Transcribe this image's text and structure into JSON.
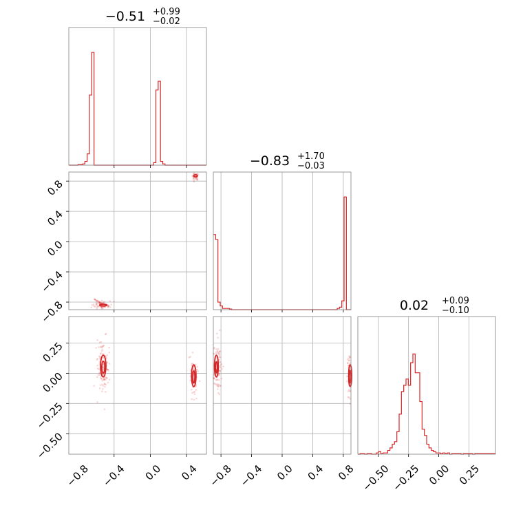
{
  "colors": {
    "accent": "#d62728",
    "grid": "#b0b0b0",
    "frame": "#808080"
  },
  "chart_data": {
    "type": "corner",
    "panels": [
      {
        "id": "hist-p1",
        "row": 0,
        "col": 0,
        "kind": "histogram",
        "title": {
          "median": "−0.51",
          "plus": "+0.99",
          "minus": "−0.02"
        },
        "xlim": [
          -0.9,
          0.62
        ],
        "xgrid": [
          -0.4,
          0.0,
          0.4
        ],
        "bins": {
          "start": -0.9,
          "width": 0.0253,
          "counts": [
            0,
            0,
            0,
            0,
            0.005,
            0.005,
            0.01,
            0.03,
            0.09,
            0.56,
            0.9,
            0,
            0,
            0,
            0,
            0,
            0,
            0,
            0,
            0,
            0,
            0,
            0,
            0,
            0,
            0,
            0,
            0,
            0,
            0,
            0,
            0,
            0,
            0,
            0,
            0,
            0,
            0.02,
            0.6,
            0.67,
            0.03,
            0.01,
            0,
            0,
            0,
            0,
            0,
            0,
            0,
            0,
            0,
            0,
            0,
            0,
            0,
            0,
            0,
            0,
            0,
            0
          ]
        }
      },
      {
        "id": "scatter-p1-p2",
        "row": 1,
        "col": 0,
        "kind": "scatter",
        "xlim": [
          -0.9,
          0.62
        ],
        "ylim": [
          -0.9,
          0.92
        ],
        "xgrid": [
          -0.4,
          0.0,
          0.4
        ],
        "ygrid": [
          -0.8,
          -0.4,
          0.0,
          0.4,
          0.8
        ],
        "yticks": [
          "−0.8",
          "−0.4",
          "0.0",
          "0.4",
          "0.8"
        ],
        "yticks_values": [
          -0.8,
          -0.4,
          0.0,
          0.4,
          0.8
        ],
        "clusters": [
          {
            "cx": -0.52,
            "cy": -0.84,
            "sx": 0.05,
            "sy": 0.025,
            "n": 90,
            "tail": [
              -0.85,
              -0.6
            ]
          },
          {
            "cx": 0.5,
            "cy": 0.86,
            "sx": 0.02,
            "sy": 0.03,
            "n": 40,
            "tail": null
          }
        ],
        "contours": [
          {
            "cx": -0.52,
            "cy": -0.84,
            "rx": 0.04,
            "ry": 0.012
          },
          {
            "cx": 0.5,
            "cy": 0.87,
            "rx": 0.02,
            "ry": 0.015
          }
        ]
      },
      {
        "id": "hist-p2",
        "row": 1,
        "col": 1,
        "kind": "histogram",
        "title": {
          "median": "−0.83",
          "plus": "+1.70",
          "minus": "−0.03"
        },
        "xlim": [
          -0.9,
          0.9
        ],
        "xgrid": [
          -0.8,
          -0.4,
          0.0,
          0.4,
          0.8
        ],
        "bins": {
          "start": -0.9,
          "width": 0.03,
          "counts": [
            0.6,
            0.56,
            0.06,
            0.03,
            0.01,
            0.01,
            0.01,
            0.005,
            0,
            0,
            0,
            0,
            0,
            0,
            0,
            0,
            0,
            0,
            0,
            0,
            0,
            0,
            0,
            0,
            0,
            0,
            0,
            0,
            0,
            0,
            0,
            0,
            0,
            0,
            0,
            0,
            0,
            0,
            0,
            0,
            0,
            0,
            0,
            0,
            0,
            0,
            0,
            0,
            0,
            0,
            0,
            0,
            0,
            0,
            0.01,
            0.02,
            0.07,
            0.9,
            0,
            0
          ]
        }
      },
      {
        "id": "scatter-p1-p3",
        "row": 2,
        "col": 0,
        "kind": "scatter",
        "xlim": [
          -0.9,
          0.62
        ],
        "ylim": [
          -0.67,
          0.47
        ],
        "xgrid": [
          -0.4,
          0.0,
          0.4
        ],
        "ygrid": [
          -0.5,
          -0.25,
          0.0,
          0.25
        ],
        "yticks": [
          "−0.50",
          "−0.25",
          "0.00",
          "0.25"
        ],
        "yticks_values": [
          -0.5,
          -0.25,
          0.0,
          0.25
        ],
        "xticks": [
          "−0.8",
          "−0.4",
          "0.0",
          "0.4"
        ],
        "xticks_values": [
          -0.8,
          -0.4,
          0.0,
          0.4
        ],
        "clusters": [
          {
            "cx": -0.52,
            "cy": 0.05,
            "sx": 0.03,
            "sy": 0.1,
            "n": 140,
            "tail": null
          },
          {
            "cx": 0.48,
            "cy": -0.03,
            "sx": 0.02,
            "sy": 0.09,
            "n": 70,
            "tail": null
          }
        ],
        "contours": [
          {
            "cx": -0.52,
            "cy": 0.06,
            "rx": 0.03,
            "ry": 0.09
          },
          {
            "cx": -0.52,
            "cy": 0.05,
            "rx": 0.017,
            "ry": 0.05
          },
          {
            "cx": 0.48,
            "cy": -0.02,
            "rx": 0.025,
            "ry": 0.09
          },
          {
            "cx": 0.48,
            "cy": -0.03,
            "rx": 0.012,
            "ry": 0.05
          }
        ]
      },
      {
        "id": "scatter-p2-p3",
        "row": 2,
        "col": 1,
        "kind": "scatter",
        "xlim": [
          -0.9,
          0.9
        ],
        "ylim": [
          -0.67,
          0.47
        ],
        "xgrid": [
          -0.8,
          -0.4,
          0.0,
          0.4,
          0.8
        ],
        "ygrid": [
          -0.5,
          -0.25,
          0.0,
          0.25
        ],
        "xticks": [
          "−0.8",
          "−0.4",
          "0.0",
          "0.4",
          "0.8"
        ],
        "xticks_values": [
          -0.8,
          -0.4,
          0.0,
          0.4,
          0.8
        ],
        "clusters": [
          {
            "cx": -0.85,
            "cy": 0.05,
            "sx": 0.03,
            "sy": 0.1,
            "n": 130,
            "tail": [
              -0.8,
              -0.5
            ]
          },
          {
            "cx": 0.88,
            "cy": -0.03,
            "sx": 0.015,
            "sy": 0.1,
            "n": 60,
            "tail": null
          }
        ],
        "contours": [
          {
            "cx": -0.86,
            "cy": 0.06,
            "rx": 0.025,
            "ry": 0.09
          },
          {
            "cx": -0.86,
            "cy": 0.05,
            "rx": 0.012,
            "ry": 0.045
          },
          {
            "cx": 0.89,
            "cy": -0.02,
            "rx": 0.02,
            "ry": 0.09
          },
          {
            "cx": 0.89,
            "cy": -0.03,
            "rx": 0.01,
            "ry": 0.05
          }
        ]
      },
      {
        "id": "hist-p3",
        "row": 2,
        "col": 2,
        "kind": "histogram",
        "title": {
          "median": "0.02",
          "plus": "+0.09",
          "minus": "−0.10"
        },
        "xlim": [
          -0.67,
          0.47
        ],
        "xgrid": [
          -0.5,
          -0.25,
          0.0,
          0.25
        ],
        "xticks": [
          "−0.50",
          "−0.25",
          "0.00",
          "0.25"
        ],
        "xticks_values": [
          -0.5,
          -0.25,
          0.0,
          0.25
        ],
        "bins": {
          "start": -0.67,
          "width": 0.019,
          "counts": [
            0,
            0.005,
            0.005,
            0,
            0.005,
            0.005,
            0,
            0,
            0.01,
            0.02,
            0.005,
            0.01,
            0.01,
            0.03,
            0.05,
            0.08,
            0.1,
            0.18,
            0.32,
            0.5,
            0.55,
            0.6,
            0.55,
            0.73,
            0.8,
            0.65,
            0.65,
            0.42,
            0.2,
            0.15,
            0.08,
            0.05,
            0.03,
            0.02,
            0.01,
            0.01,
            0.005,
            0.01,
            0.005,
            0.01,
            0,
            0.005,
            0.005,
            0.005,
            0.005,
            0,
            0.005,
            0.005,
            0.005,
            0.005,
            0,
            0.005,
            0.005,
            0.005,
            0.005,
            0.005,
            0.005,
            0.005,
            0.005,
            0.005
          ]
        }
      }
    ]
  }
}
